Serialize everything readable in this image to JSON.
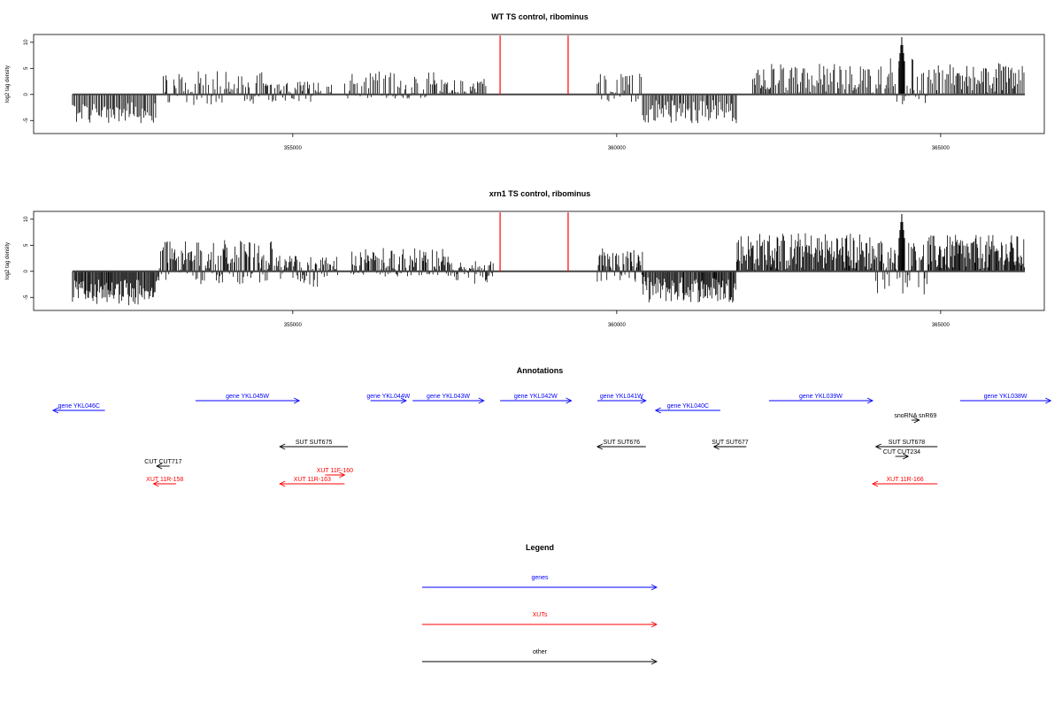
{
  "chart_data": [
    {
      "type": "bar",
      "title": "WT TS control, ribominus",
      "ylabel": "log2 tag density",
      "xlim": [
        351000,
        366600
      ],
      "ylim": [
        -7.5,
        11.5
      ],
      "yticks": [
        -5,
        0,
        5,
        10
      ],
      "xticks": [
        355000,
        360000,
        365000
      ],
      "baseline": 0,
      "markers_x": [
        358200,
        359250
      ],
      "marker_color": "#ff0000",
      "bar_color": "#000000",
      "regions": [
        {
          "start": 351600,
          "end": 352900,
          "min": -5.5,
          "max": -1.5
        },
        {
          "start": 353000,
          "end": 354600,
          "min": -2.0,
          "max": 4.5
        },
        {
          "start": 354600,
          "end": 355600,
          "min": -1.5,
          "max": 2.5
        },
        {
          "start": 355800,
          "end": 357200,
          "min": -0.8,
          "max": 4.5
        },
        {
          "start": 357200,
          "end": 358000,
          "min": -0.5,
          "max": 3.0
        },
        {
          "start": 359700,
          "end": 360400,
          "min": -1.5,
          "max": 4.0
        },
        {
          "start": 360400,
          "end": 361850,
          "min": -5.5,
          "max": -1.0
        },
        {
          "start": 362100,
          "end": 364200,
          "min": -0.3,
          "max": 6.0
        },
        {
          "start": 364200,
          "end": 364800,
          "min": -2.0,
          "max": 7.0
        },
        {
          "start": 364800,
          "end": 366300,
          "min": -0.3,
          "max": 6.0
        }
      ],
      "peaks": [
        {
          "x": 364400,
          "value": 11.0
        }
      ],
      "dense": false
    },
    {
      "type": "bar",
      "title": "xrn1 TS control, ribominus",
      "ylabel": "log2 tag density",
      "xlim": [
        351000,
        366600
      ],
      "ylim": [
        -7.5,
        11.5
      ],
      "yticks": [
        -5,
        0,
        5,
        10
      ],
      "xticks": [
        355000,
        360000,
        365000
      ],
      "baseline": 0,
      "markers_x": [
        358200,
        359250
      ],
      "marker_color": "#ff0000",
      "bar_color": "#000000",
      "regions": [
        {
          "start": 351600,
          "end": 352900,
          "min": -6.5,
          "max": -1.5
        },
        {
          "start": 352900,
          "end": 354700,
          "min": -2.5,
          "max": 6.0
        },
        {
          "start": 354700,
          "end": 355700,
          "min": -3.0,
          "max": 3.0
        },
        {
          "start": 355900,
          "end": 357400,
          "min": -1.0,
          "max": 4.5
        },
        {
          "start": 357400,
          "end": 358100,
          "min": -2.5,
          "max": 2.0
        },
        {
          "start": 359700,
          "end": 360400,
          "min": -2.0,
          "max": 4.5
        },
        {
          "start": 360400,
          "end": 361850,
          "min": -6.0,
          "max": -1.0
        },
        {
          "start": 361850,
          "end": 364000,
          "min": -0.3,
          "max": 7.5
        },
        {
          "start": 364000,
          "end": 364800,
          "min": -4.5,
          "max": 6.0
        },
        {
          "start": 364800,
          "end": 366300,
          "min": -0.3,
          "max": 7.0
        }
      ],
      "peaks": [
        {
          "x": 364400,
          "value": 11.0
        }
      ],
      "dense": true
    }
  ],
  "annotations": {
    "title": "Annotations",
    "features": [
      {
        "label": "gene YKL046C",
        "start": 352100,
        "end": 351300,
        "color": "#0000ff",
        "row": 1
      },
      {
        "label": "gene YKL045W",
        "start": 353500,
        "end": 355100,
        "color": "#0000ff",
        "row": 0
      },
      {
        "label": "gene YKL044W",
        "start": 356200,
        "end": 356750,
        "color": "#0000ff",
        "row": 0
      },
      {
        "label": "gene YKL043W",
        "start": 356850,
        "end": 357950,
        "color": "#0000ff",
        "row": 0
      },
      {
        "label": "gene YKL042W",
        "start": 358200,
        "end": 359300,
        "color": "#0000ff",
        "row": 0
      },
      {
        "label": "gene YKL041W",
        "start": 359700,
        "end": 360450,
        "color": "#0000ff",
        "row": 0
      },
      {
        "label": "gene YKL040C",
        "start": 361600,
        "end": 360600,
        "color": "#0000ff",
        "row": 1
      },
      {
        "label": "gene YKL039W",
        "start": 362350,
        "end": 363950,
        "color": "#0000ff",
        "row": 0
      },
      {
        "label": "gene YKL038W",
        "start": 365300,
        "end": 366700,
        "color": "#0000ff",
        "row": 0
      },
      {
        "label": "snoRNA snR69",
        "start": 364550,
        "end": 364670,
        "color": "#000000",
        "row": 2
      },
      {
        "label": "SUT SUT675",
        "start": 355850,
        "end": 354800,
        "color": "#000000",
        "row": 4
      },
      {
        "label": "SUT SUT676",
        "start": 360450,
        "end": 359700,
        "color": "#000000",
        "row": 4
      },
      {
        "label": "SUT SUT677",
        "start": 362000,
        "end": 361500,
        "color": "#000000",
        "row": 4
      },
      {
        "label": "SUT SUT678",
        "start": 364950,
        "end": 364000,
        "color": "#000000",
        "row": 4
      },
      {
        "label": "CUT CUT234",
        "start": 364300,
        "end": 364500,
        "color": "#000000",
        "row": 5
      },
      {
        "label": "CUT CUT717",
        "start": 353100,
        "end": 352900,
        "color": "#000000",
        "row": 6
      },
      {
        "label": "XUT 11F-160",
        "start": 355500,
        "end": 355800,
        "color": "#ff0000",
        "row": 7
      },
      {
        "label": "XUT 11R-158",
        "start": 353200,
        "end": 352850,
        "color": "#ff0000",
        "row": 8
      },
      {
        "label": "XUT 11R-163",
        "start": 355800,
        "end": 354800,
        "color": "#ff0000",
        "row": 8
      },
      {
        "label": "XUT 11R-166",
        "start": 364950,
        "end": 363950,
        "color": "#ff0000",
        "row": 8
      }
    ]
  },
  "legend": {
    "title": "Legend",
    "items": [
      {
        "label": "genes",
        "color": "#0000ff"
      },
      {
        "label": "XUTs",
        "color": "#ff0000"
      },
      {
        "label": "other",
        "color": "#000000"
      }
    ]
  }
}
